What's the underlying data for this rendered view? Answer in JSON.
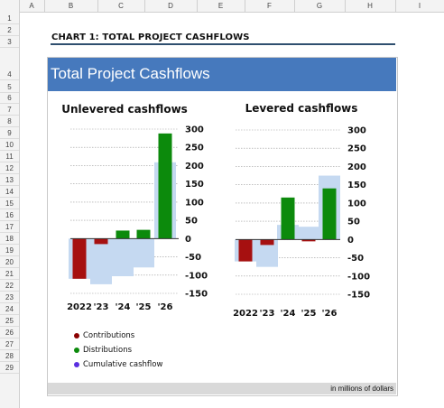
{
  "sheet": {
    "columns": [
      "A",
      "B",
      "C",
      "D",
      "E",
      "F",
      "G",
      "H",
      "I"
    ],
    "rows": [
      "1",
      "2",
      "3",
      "4",
      "5",
      "6",
      "7",
      "8",
      "9",
      "10",
      "11",
      "12",
      "13",
      "14",
      "15",
      "16",
      "17",
      "18",
      "19",
      "20",
      "21",
      "22",
      "23",
      "24",
      "25",
      "26",
      "27",
      "28",
      "29"
    ]
  },
  "header": {
    "sheet_title": "CHART 1: TOTAL PROJECT CASHFLOWS",
    "banner_title": "Total Project Cashflows"
  },
  "footer": {
    "note": "in millions of dollars"
  },
  "legend": [
    {
      "label": "Contributions",
      "color": "#8b0000"
    },
    {
      "label": "Distributions",
      "color": "#0c8a0c"
    },
    {
      "label": "Cumulative cashflow",
      "color": "#5a2ee0"
    }
  ],
  "colors": {
    "banner": "#4679bd",
    "contributions": "#a61010",
    "distributions": "#0c8a0c",
    "cumulative": "#c5d9f1"
  },
  "chart_data": [
    {
      "type": "bar",
      "title": "Unlevered cashflows",
      "categories": [
        "2022",
        "'23",
        "'24",
        "'25",
        "'26"
      ],
      "series": [
        {
          "name": "Contributions",
          "values": [
            -110,
            -15,
            0,
            0,
            0
          ]
        },
        {
          "name": "Distributions",
          "values": [
            0,
            0,
            22,
            24,
            288
          ]
        },
        {
          "name": "Cumulative cashflow",
          "values": [
            -110,
            -125,
            -103,
            -79,
            209
          ]
        }
      ],
      "yticks": [
        "300",
        "250",
        "200",
        "150",
        "100",
        "50",
        "0",
        "-50",
        "-100",
        "-150"
      ],
      "ylim": [
        -150,
        300
      ],
      "grid": true
    },
    {
      "type": "bar",
      "title": "Levered cashflows",
      "categories": [
        "2022",
        "'23",
        "'24",
        "'25",
        "'26"
      ],
      "series": [
        {
          "name": "Contributions",
          "values": [
            -60,
            -15,
            0,
            -5,
            0
          ]
        },
        {
          "name": "Distributions",
          "values": [
            0,
            0,
            115,
            0,
            140
          ]
        },
        {
          "name": "Cumulative cashflow",
          "values": [
            -60,
            -75,
            40,
            35,
            175
          ]
        }
      ],
      "yticks": [
        "300",
        "250",
        "200",
        "150",
        "100",
        "50",
        "0",
        "-50",
        "-100",
        "-150"
      ],
      "ylim": [
        -150,
        300
      ],
      "grid": true
    }
  ]
}
